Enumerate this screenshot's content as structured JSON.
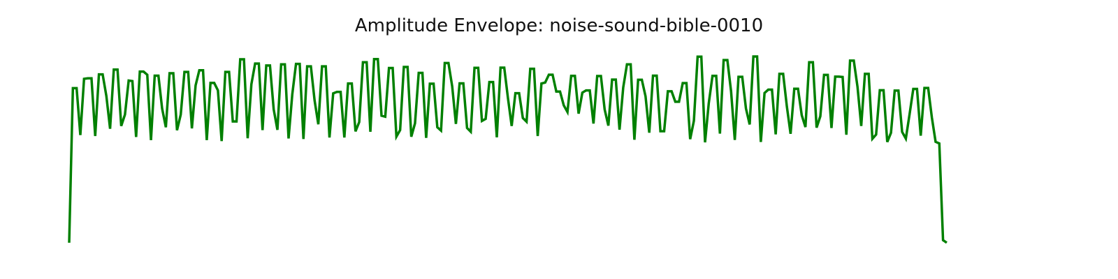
{
  "page": {
    "background": "#ffffff"
  },
  "chart_data": {
    "type": "line",
    "title": "Amplitude Envelope: noise-sound-bible-0010",
    "xlabel": "",
    "ylabel": "",
    "axes_visible": false,
    "grid": false,
    "legend": "none",
    "color": "#008000",
    "xlim": [
      0,
      258
    ],
    "ylim": [
      0,
      1
    ],
    "series": [
      {
        "values": [
          0.0,
          0.83,
          0.83,
          0.578,
          0.88,
          0.883,
          0.883,
          0.573,
          0.904,
          0.904,
          0.788,
          0.612,
          0.93,
          0.93,
          0.627,
          0.688,
          0.871,
          0.868,
          0.568,
          0.919,
          0.919,
          0.902,
          0.551,
          0.897,
          0.897,
          0.72,
          0.62,
          0.91,
          0.91,
          0.604,
          0.688,
          0.917,
          0.917,
          0.614,
          0.845,
          0.926,
          0.926,
          0.551,
          0.858,
          0.858,
          0.818,
          0.546,
          0.917,
          0.917,
          0.651,
          0.651,
          0.985,
          0.985,
          0.561,
          0.851,
          0.962,
          0.962,
          0.605,
          0.952,
          0.952,
          0.716,
          0.606,
          0.958,
          0.958,
          0.56,
          0.797,
          0.96,
          0.96,
          0.557,
          0.947,
          0.947,
          0.764,
          0.636,
          0.947,
          0.947,
          0.565,
          0.802,
          0.81,
          0.81,
          0.565,
          0.855,
          0.855,
          0.598,
          0.648,
          0.969,
          0.969,
          0.596,
          0.986,
          0.986,
          0.682,
          0.677,
          0.938,
          0.938,
          0.57,
          0.605,
          0.944,
          0.944,
          0.569,
          0.641,
          0.912,
          0.912,
          0.563,
          0.854,
          0.854,
          0.62,
          0.602,
          0.965,
          0.965,
          0.84,
          0.638,
          0.856,
          0.856,
          0.616,
          0.596,
          0.939,
          0.939,
          0.654,
          0.665,
          0.863,
          0.863,
          0.566,
          0.94,
          0.94,
          0.776,
          0.627,
          0.803,
          0.803,
          0.67,
          0.65,
          0.934,
          0.934,
          0.573,
          0.855,
          0.86,
          0.902,
          0.902,
          0.812,
          0.812,
          0.738,
          0.702,
          0.896,
          0.896,
          0.693,
          0.806,
          0.818,
          0.818,
          0.64,
          0.895,
          0.895,
          0.716,
          0.629,
          0.876,
          0.876,
          0.607,
          0.834,
          0.958,
          0.958,
          0.553,
          0.875,
          0.875,
          0.786,
          0.591,
          0.897,
          0.897,
          0.599,
          0.599,
          0.813,
          0.813,
          0.757,
          0.757,
          0.857,
          0.857,
          0.556,
          0.655,
          0.999,
          0.999,
          0.539,
          0.749,
          0.896,
          0.896,
          0.586,
          0.981,
          0.981,
          0.813,
          0.552,
          0.891,
          0.891,
          0.721,
          0.635,
          1.0,
          1.0,
          0.541,
          0.804,
          0.822,
          0.822,
          0.582,
          0.907,
          0.907,
          0.732,
          0.585,
          0.827,
          0.827,
          0.685,
          0.621,
          0.969,
          0.969,
          0.618,
          0.679,
          0.901,
          0.901,
          0.616,
          0.892,
          0.892,
          0.89,
          0.58,
          0.978,
          0.978,
          0.837,
          0.627,
          0.907,
          0.907,
          0.558,
          0.581,
          0.819,
          0.819,
          0.541,
          0.59,
          0.817,
          0.817,
          0.595,
          0.559,
          0.69,
          0.826,
          0.826,
          0.575,
          0.831,
          0.831,
          0.672,
          0.542,
          0.533,
          0.014,
          0.0
        ]
      }
    ]
  }
}
